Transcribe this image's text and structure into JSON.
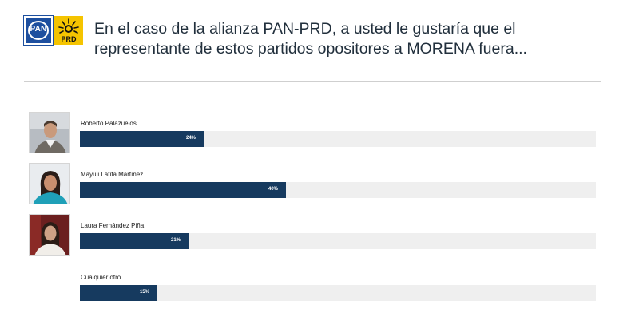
{
  "header": {
    "pan_logo_text": "PAN",
    "prd_logo_text": "PRD",
    "question": "En el caso de la alianza PAN-PRD, a usted le gustaría que el representante de estos partidos opositores a MORENA fuera..."
  },
  "chart_data": {
    "type": "bar",
    "orientation": "horizontal",
    "categories": [
      "Roberto Palazuelos",
      "Mayuli Latifa Martínez",
      "Laura Fernández Piña",
      "Cualquier otro"
    ],
    "values": [
      24,
      40,
      21,
      15
    ],
    "value_labels": [
      "24%",
      "40%",
      "21%",
      "15%"
    ],
    "unit": "%",
    "xlim": [
      0,
      100
    ],
    "bar_color": "#163a5f",
    "track_color": "#efefef",
    "grid": false,
    "legend": "none",
    "avatars": [
      "man-portrait-icon",
      "woman-portrait-icon",
      "woman-portrait-icon",
      ""
    ]
  }
}
